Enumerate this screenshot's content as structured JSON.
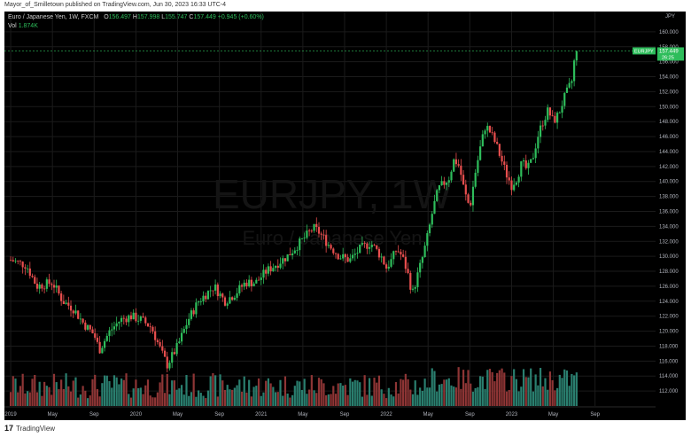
{
  "header": {
    "publisher_line": "Mayor_of_Smilletown published on TradingView.com, Jun 30, 2023 16:33 UTC-4"
  },
  "legend": {
    "instrument": "Euro / Japanese Yen, 1W, FXCM",
    "open_label": "O",
    "open": "156.497",
    "high_label": "H",
    "high": "157.998",
    "low_label": "L",
    "low": "155.747",
    "close_label": "C",
    "close": "157.449",
    "change": "+0.945 (+0.60%)",
    "vol_label": "Vol",
    "vol": "1.874K"
  },
  "watermark": {
    "symbol": "EURJPY, 1W",
    "description": "Euro / Japanese Yen"
  },
  "price_axis": {
    "currency": "JPY",
    "symbol_badge": "EURJPY",
    "last_price": "157.449",
    "countdown": "26:25"
  },
  "footer": {
    "brand": "TradingView",
    "logo": "17"
  },
  "colors": {
    "up": "#2ebd5b",
    "down": "#e84e4e",
    "vol_up": "#2a7f6f",
    "vol_down": "#8e3535",
    "background": "#000000",
    "text": "#b2b5be"
  },
  "chart_data": {
    "type": "candlestick",
    "symbol": "EURJPY",
    "interval": "1W",
    "ylim": [
      110,
      162
    ],
    "y_ticks": [
      "160.000",
      "158.000",
      "156.000",
      "154.000",
      "152.000",
      "150.000",
      "148.000",
      "146.000",
      "144.000",
      "142.000",
      "140.000",
      "138.000",
      "136.000",
      "134.000",
      "132.000",
      "130.000",
      "128.000",
      "126.000",
      "124.000",
      "122.000",
      "120.000",
      "118.000",
      "116.000",
      "114.000",
      "112.000"
    ],
    "x_ticks": [
      "2019",
      "May",
      "Sep",
      "2020",
      "May",
      "Sep",
      "2021",
      "May",
      "Sep",
      "2022",
      "May",
      "Sep",
      "2023",
      "May",
      "Sep"
    ],
    "x_tick_months": [
      0,
      4,
      8,
      12,
      16,
      20,
      24,
      28,
      32,
      36,
      40,
      44,
      48,
      52,
      56
    ],
    "month_range": [
      -0.6,
      61.8
    ],
    "price_path": [
      [
        0,
        129.5
      ],
      [
        1.5,
        128.8
      ],
      [
        2.5,
        126.0
      ],
      [
        4,
        126.5
      ],
      [
        5,
        124.0
      ],
      [
        6,
        123.0
      ],
      [
        7,
        121.0
      ],
      [
        8,
        119.5
      ],
      [
        8.5,
        117.5
      ],
      [
        9.5,
        120.0
      ],
      [
        10.5,
        121.5
      ],
      [
        11.5,
        122.0
      ],
      [
        12.5,
        121.5
      ],
      [
        13.5,
        120.5
      ],
      [
        14.5,
        117.0
      ],
      [
        15,
        115.5
      ],
      [
        16,
        118.0
      ],
      [
        17,
        121.5
      ],
      [
        18,
        124.0
      ],
      [
        19.5,
        126.0
      ],
      [
        20.5,
        124.0
      ],
      [
        21.5,
        125.0
      ],
      [
        22.5,
        126.5
      ],
      [
        23.5,
        126.5
      ],
      [
        24.5,
        128.0
      ],
      [
        25.5,
        129.0
      ],
      [
        26.5,
        130.0
      ],
      [
        27.5,
        131.5
      ],
      [
        28.5,
        133.0
      ],
      [
        29,
        133.8
      ],
      [
        29.5,
        133.3
      ],
      [
        30.5,
        131.5
      ],
      [
        31.5,
        130.0
      ],
      [
        32.5,
        129.5
      ],
      [
        33.5,
        131.0
      ],
      [
        34.5,
        131.8
      ],
      [
        35.5,
        130.0
      ],
      [
        36,
        128.5
      ],
      [
        36.5,
        129.5
      ],
      [
        37,
        131.0
      ],
      [
        37.5,
        130.0
      ],
      [
        38,
        128.0
      ],
      [
        38.5,
        125.0
      ],
      [
        39,
        127.5
      ],
      [
        39.5,
        130.0
      ],
      [
        40,
        133.0
      ],
      [
        40.5,
        136.5
      ],
      [
        41,
        139.0
      ],
      [
        42,
        140.5
      ],
      [
        42.5,
        143.0
      ],
      [
        43,
        142.0
      ],
      [
        43.5,
        138.5
      ],
      [
        44,
        136.5
      ],
      [
        44.5,
        141.0
      ],
      [
        45,
        144.5
      ],
      [
        45.5,
        147.5
      ],
      [
        46,
        146.5
      ],
      [
        46.5,
        145.0
      ],
      [
        47,
        143.0
      ],
      [
        47.5,
        141.0
      ],
      [
        48,
        139.5
      ],
      [
        48.5,
        140.5
      ],
      [
        49,
        142.5
      ],
      [
        49.5,
        141.5
      ],
      [
        50,
        143.0
      ],
      [
        50.5,
        146.0
      ],
      [
        51,
        148.0
      ],
      [
        51.5,
        149.5
      ],
      [
        52,
        148.0
      ],
      [
        52.5,
        149.0
      ],
      [
        53,
        151.0
      ],
      [
        53.5,
        152.5
      ],
      [
        53.8,
        153.5
      ],
      [
        54,
        156.0
      ],
      [
        54.3,
        157.449
      ]
    ],
    "volume": {
      "ylim": [
        0,
        3.0
      ],
      "last": 1.874,
      "unit": "K"
    }
  }
}
